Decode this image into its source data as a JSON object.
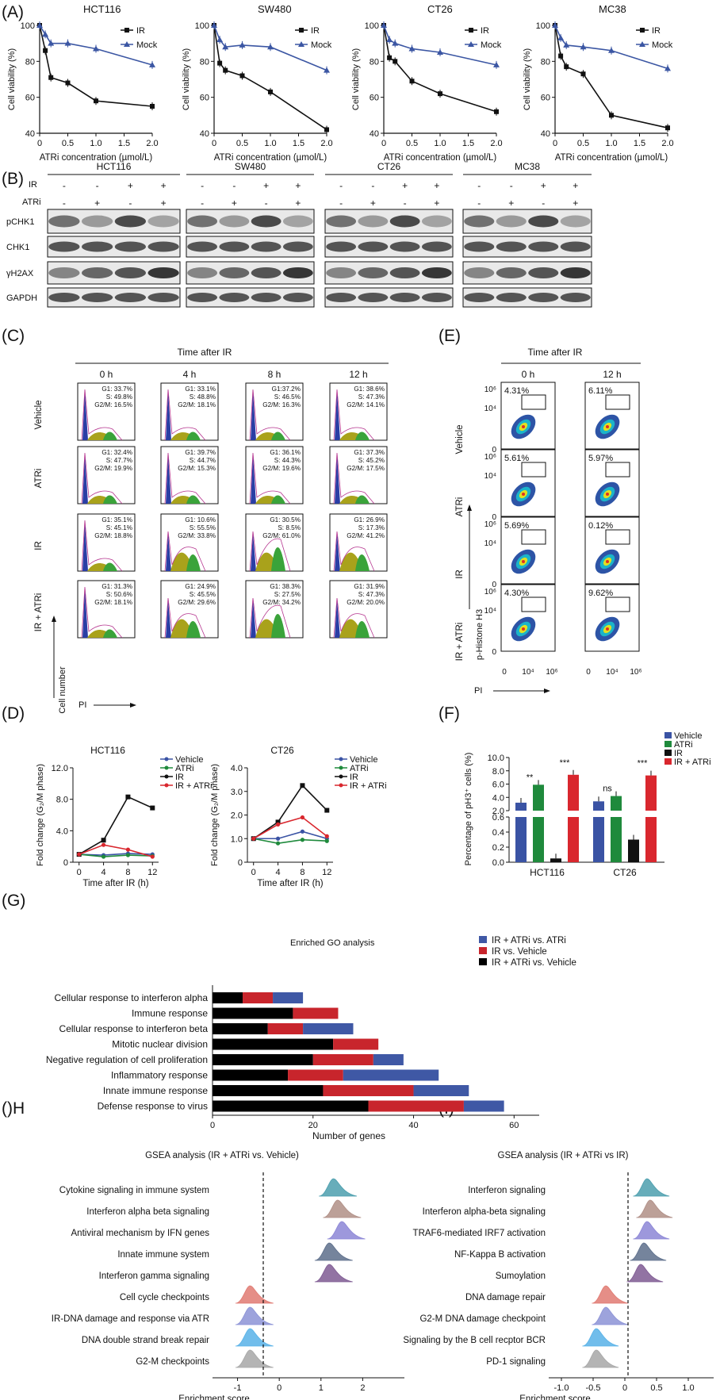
{
  "panel_letters": {
    "A": "(A)",
    "B": "(B)",
    "C": "(C)",
    "D": "(D)",
    "E": "(E)",
    "F": "(F)",
    "G": "(G)",
    "H": "()H",
    "I": "(I)"
  },
  "colors": {
    "ir": "#111111",
    "mock": "#3b56a3",
    "vehicle": "#3a53a4",
    "atri": "#1f8a3c",
    "ir_atri": "#d9272e",
    "go_blue": "#3f58a5",
    "go_red": "#c8252c",
    "go_black": "#000000"
  },
  "panel_a": {
    "xlabel": "ATRi concentration (µmol/L)",
    "ylabel": "Cell viability (%)",
    "legend": [
      "IR",
      "Mock"
    ],
    "xticks": [
      "0",
      "0.5",
      "1.0",
      "1.5",
      "2.0"
    ],
    "yticks": [
      "40",
      "60",
      "80",
      "100"
    ],
    "chart_data": [
      {
        "type": "line",
        "title": "HCT116",
        "x": [
          0,
          0.1,
          0.2,
          0.5,
          1.0,
          2.0
        ],
        "series": [
          {
            "name": "IR",
            "values": [
              100,
              86,
              71,
              68,
              58,
              55
            ]
          },
          {
            "name": "Mock",
            "values": [
              100,
              95,
              90,
              90,
              87,
              78
            ]
          }
        ],
        "xlim": [
          0,
          2
        ],
        "ylim": [
          40,
          100
        ]
      },
      {
        "type": "line",
        "title": "SW480",
        "x": [
          0,
          0.1,
          0.2,
          0.5,
          1.0,
          2.0
        ],
        "series": [
          {
            "name": "IR",
            "values": [
              100,
              79,
              75,
              72,
              63,
              42
            ]
          },
          {
            "name": "Mock",
            "values": [
              100,
              92,
              88,
              89,
              88,
              75
            ]
          }
        ],
        "xlim": [
          0,
          2
        ],
        "ylim": [
          40,
          100
        ]
      },
      {
        "type": "line",
        "title": "CT26",
        "x": [
          0,
          0.1,
          0.2,
          0.5,
          1.0,
          2.0
        ],
        "series": [
          {
            "name": "IR",
            "values": [
              100,
              82,
              80,
              69,
              62,
              52
            ]
          },
          {
            "name": "Mock",
            "values": [
              100,
              92,
              90,
              87,
              85,
              78
            ]
          }
        ],
        "xlim": [
          0,
          2
        ],
        "ylim": [
          40,
          100
        ]
      },
      {
        "type": "line",
        "title": "MC38",
        "x": [
          0,
          0.1,
          0.2,
          0.5,
          1.0,
          2.0
        ],
        "series": [
          {
            "name": "IR",
            "values": [
              100,
              83,
              77,
              73,
              50,
              43
            ]
          },
          {
            "name": "Mock",
            "values": [
              100,
              93,
              89,
              88,
              86,
              76
            ]
          }
        ],
        "xlim": [
          0,
          2
        ],
        "ylim": [
          40,
          100
        ]
      }
    ]
  },
  "panel_b": {
    "cells": [
      "HCT116",
      "SW480",
      "CT26",
      "MC38"
    ],
    "ir_label": "IR",
    "atri_label": "ATRi",
    "ir_signs": [
      "-",
      "-",
      "+",
      "+"
    ],
    "atri_signs": [
      "-",
      "+",
      "-",
      "+"
    ],
    "bands": [
      "pCHK1",
      "CHK1",
      "γH2AX",
      "GAPDH"
    ]
  },
  "panel_c": {
    "header": "Time after IR",
    "times": [
      "0 h",
      "4 h",
      "8 h",
      "12 h"
    ],
    "rows": [
      "Vehicle",
      "ATRi",
      "IR",
      "IR + ATRi"
    ],
    "ylabel": "Cell number",
    "xlabel": "PI",
    "stats": [
      [
        [
          "G1: 33.7%",
          "S: 49.8%",
          "G2/M: 16.5%"
        ],
        [
          "G1: 33.1%",
          "S: 48.8%",
          "G2/M: 18.1%"
        ],
        [
          "G1:37.2%",
          "S: 46.5%",
          "G2/M: 16.3%"
        ],
        [
          "G1: 38.6%",
          "S: 47.3%",
          "G2/M: 14.1%"
        ]
      ],
      [
        [
          "G1: 32.4%",
          "S: 47.7%",
          "G2/M: 19.9%"
        ],
        [
          "G1: 39.7%",
          "S: 44.7%",
          "G2/M: 15.3%"
        ],
        [
          "G1: 36.1%",
          "S: 44.3%",
          "G2/M: 19.6%"
        ],
        [
          "G1: 37.3%",
          "S: 45.2%",
          "G2/M: 17.5%"
        ]
      ],
      [
        [
          "G1: 35.1%",
          "S: 45.1%",
          "G2/M: 18.8%"
        ],
        [
          "G1: 10.6%",
          "S: 55.5%",
          "G2/M: 33.8%"
        ],
        [
          "G1: 30.5%",
          "S: 8.5%",
          "G2/M: 61.0%"
        ],
        [
          "G1: 26.9%",
          "S: 17.3%",
          "G2/M: 41.2%"
        ]
      ],
      [
        [
          "G1: 31.3%",
          "S: 50.6%",
          "G2/M: 18.1%"
        ],
        [
          "G1: 24.9%",
          "S: 45.5%",
          "G2/M: 29.6%"
        ],
        [
          "G1: 38.3%",
          "S: 27.5%",
          "G2/M: 34.2%"
        ],
        [
          "G1: 31.9%",
          "S: 47.3%",
          "G2/M: 20.0%"
        ]
      ]
    ]
  },
  "panel_d": {
    "xlabel": "Time after IR (h)",
    "ylabel": "Fold change (G₂/M phase)",
    "legend": [
      "Vehicle",
      "ATRi",
      "IR",
      "IR + ATRi"
    ],
    "xticks": [
      "0",
      "4",
      "8",
      "12"
    ],
    "chart_data": [
      {
        "type": "line",
        "title": "HCT116",
        "x": [
          0,
          4,
          8,
          12
        ],
        "series": [
          {
            "name": "Vehicle",
            "values": [
              1.0,
              0.9,
              1.1,
              1.0
            ]
          },
          {
            "name": "ATRi",
            "values": [
              1.0,
              0.7,
              0.9,
              0.8
            ]
          },
          {
            "name": "IR",
            "values": [
              1.0,
              2.8,
              8.3,
              6.9
            ]
          },
          {
            "name": "IR + ATRi",
            "values": [
              1.0,
              2.2,
              1.6,
              0.7
            ]
          }
        ],
        "ylim": [
          0,
          12
        ],
        "yticks": [
          "0",
          "4.0",
          "8.0",
          "12.0"
        ]
      },
      {
        "type": "line",
        "title": "CT26",
        "x": [
          0,
          4,
          8,
          12
        ],
        "series": [
          {
            "name": "Vehicle",
            "values": [
              1.0,
              1.0,
              1.3,
              1.0
            ]
          },
          {
            "name": "ATRi",
            "values": [
              1.0,
              0.8,
              0.95,
              0.9
            ]
          },
          {
            "name": "IR",
            "values": [
              1.0,
              1.7,
              3.25,
              2.2
            ]
          },
          {
            "name": "IR + ATRi",
            "values": [
              1.0,
              1.6,
              1.9,
              1.1
            ]
          }
        ],
        "ylim": [
          0,
          4
        ],
        "yticks": [
          "0",
          "1.0",
          "2.0",
          "3.0",
          "4.0"
        ]
      }
    ]
  },
  "panel_e": {
    "header": "Time after IR",
    "times": [
      "0 h",
      "12 h"
    ],
    "rows": [
      "Vehicle",
      "ATRi",
      "IR",
      "IR + ATRi"
    ],
    "percents": [
      [
        "4.31%",
        "6.11%"
      ],
      [
        "5.61%",
        "5.97%"
      ],
      [
        "5.69%",
        "0.12%"
      ],
      [
        "4.30%",
        "9.62%"
      ]
    ],
    "yticks": [
      "10⁶",
      "10⁴",
      "0"
    ],
    "xticks": [
      "0",
      "10⁴",
      "10⁶"
    ],
    "ylabel": "p-Histone H3",
    "xlabel": "PI"
  },
  "panel_f": {
    "ylabel": "Percentage of pH3⁺ cells (%)",
    "legend": [
      "Vehicle",
      "ATRi",
      "IR",
      "IR + ATRi"
    ],
    "sig": {
      "HCT116": [
        "**",
        "***"
      ],
      "CT26": [
        "ns",
        "***"
      ]
    },
    "chart_data": {
      "type": "bar",
      "categories": [
        "HCT116",
        "CT26"
      ],
      "series": [
        {
          "name": "Vehicle",
          "values": [
            3.2,
            3.4
          ]
        },
        {
          "name": "ATRi",
          "values": [
            5.9,
            4.2
          ]
        },
        {
          "name": "IR",
          "values": [
            0.05,
            0.3
          ]
        },
        {
          "name": "IR + ATRi",
          "values": [
            7.4,
            7.3
          ]
        }
      ],
      "yticks": [
        "0.0",
        "0.2",
        "0.4",
        "0.6",
        "2.0",
        "4.0",
        "6.0",
        "8.0",
        "10.0"
      ]
    }
  },
  "panel_g": {
    "title": "Enriched GO analysis",
    "xlabel": "Number of genes",
    "xticks": [
      "0",
      "20",
      "40",
      "60"
    ],
    "legend": [
      "IR + ATRi  vs.  ATRi",
      "IR vs. Vehicle",
      "IR + ATRi  vs. Vehicle"
    ],
    "chart_data": {
      "type": "bar",
      "orientation": "horizontal",
      "stacked": true,
      "categories": [
        "Cellular response to interferon alpha",
        "Immune response",
        "Cellular response to interferon beta",
        "Mitotic nuclear division",
        "Negative regulation of cell proliferation",
        "Inflammatory response",
        "Innate immune response",
        "Defense response to virus"
      ],
      "series": [
        {
          "name": "IR + ATRi  vs. Vehicle",
          "values": [
            6,
            16,
            11,
            24,
            20,
            15,
            22,
            31
          ]
        },
        {
          "name": "IR vs. Vehicle",
          "values": [
            6,
            9,
            7,
            9,
            12,
            11,
            18,
            19
          ]
        },
        {
          "name": "IR + ATRi  vs.  ATRi",
          "values": [
            6,
            0,
            10,
            0,
            6,
            19,
            11,
            8
          ]
        }
      ],
      "xlim": [
        0,
        65
      ]
    }
  },
  "panel_h": {
    "title": "GSEA analysis (IR + ATRi vs. Vehicle)",
    "xlabel": "Enrichment score",
    "xticks": [
      "-1",
      "0",
      "1",
      "2"
    ],
    "chart_data": {
      "type": "ridgeline",
      "categories": [
        "Cytokine signaling in immune system",
        "Interferon alpha beta signaling",
        "Antiviral mechanism by IFN genes",
        "Innate immune system",
        "Interferon gamma signaling",
        "Cell cycle checkpoints",
        "IR-DNA damage and response via ATR",
        "DNA double strand break repair",
        "G2-M checkpoints"
      ],
      "centers": [
        1.3,
        1.4,
        1.5,
        1.2,
        1.2,
        -0.7,
        -0.7,
        -0.7,
        -0.7
      ],
      "xlim": [
        -1.6,
        3
      ]
    }
  },
  "panel_i": {
    "title": "GSEA analysis (IR + ATRi vs IR)",
    "xlabel": "Enrichment score",
    "xticks": [
      "-1.0",
      "-0.5",
      "0",
      "0.5",
      "1.0"
    ],
    "chart_data": {
      "type": "ridgeline",
      "categories": [
        "Interferon signaling",
        "Interferon alpha-beta signaling",
        "TRAF6-mediated IRF7 activation",
        "NF-Kappa B activation",
        "Sumoylation",
        "DNA damage repair",
        "G2-M DNA damage checkpoint",
        "Signaling by the B cell recptor BCR",
        "PD-1 signaling"
      ],
      "centers": [
        0.35,
        0.4,
        0.35,
        0.3,
        0.25,
        -0.3,
        -0.3,
        -0.45,
        -0.45
      ],
      "xlim": [
        -1.2,
        1.4
      ]
    }
  }
}
